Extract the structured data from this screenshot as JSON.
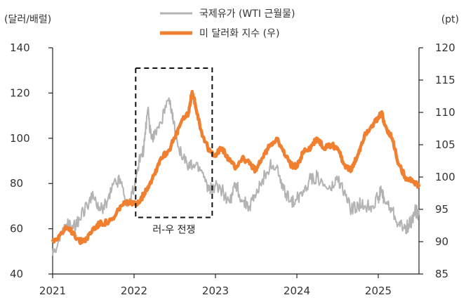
{
  "chart_data": {
    "type": "line",
    "title": "",
    "left_unit": "(달러/배럴)",
    "right_unit": "(pt)",
    "x_ticks": [
      "2021",
      "2022",
      "2023",
      "2024",
      "2025"
    ],
    "x_range": [
      2021.0,
      2025.5
    ],
    "left_axis": {
      "ylim": [
        40,
        140
      ],
      "ticks": [
        "40",
        "60",
        "80",
        "100",
        "120",
        "140"
      ]
    },
    "right_axis": {
      "ylim": [
        85,
        120
      ],
      "ticks": [
        "85",
        "90",
        "95",
        "100",
        "105",
        "110",
        "115",
        "120"
      ]
    },
    "series": [
      {
        "name": "국제유가 (WTI 근월물)",
        "axis": "left",
        "color": "#b3b3b3",
        "x": [
          2021.0,
          2021.08,
          2021.17,
          2021.25,
          2021.33,
          2021.42,
          2021.5,
          2021.58,
          2021.67,
          2021.75,
          2021.83,
          2021.92,
          2022.0,
          2022.06,
          2022.12,
          2022.17,
          2022.21,
          2022.25,
          2022.33,
          2022.42,
          2022.46,
          2022.5,
          2022.58,
          2022.67,
          2022.75,
          2022.83,
          2022.92,
          2023.0,
          2023.08,
          2023.17,
          2023.25,
          2023.33,
          2023.42,
          2023.5,
          2023.58,
          2023.67,
          2023.75,
          2023.83,
          2023.92,
          2024.0,
          2024.08,
          2024.17,
          2024.25,
          2024.33,
          2024.42,
          2024.5,
          2024.58,
          2024.67,
          2024.75,
          2024.83,
          2024.92,
          2025.0,
          2025.04,
          2025.08,
          2025.17,
          2025.25,
          2025.33,
          2025.38,
          2025.42,
          2025.46,
          2025.5
        ],
        "values": [
          48,
          55,
          62,
          60,
          64,
          71,
          74,
          68,
          72,
          80,
          82,
          70,
          78,
          90,
          95,
          113,
          100,
          102,
          107,
          117,
          112,
          104,
          93,
          87,
          88,
          86,
          77,
          79,
          77,
          72,
          80,
          72,
          70,
          75,
          82,
          88,
          87,
          77,
          72,
          73,
          77,
          82,
          83,
          79,
          77,
          82,
          76,
          68,
          71,
          70,
          70,
          74,
          77,
          72,
          68,
          62,
          60,
          62,
          64,
          68,
          66
        ]
      },
      {
        "name": "미 달러화 지수 (우)",
        "axis": "right",
        "color": "#f07f2f",
        "x": [
          2021.0,
          2021.08,
          2021.17,
          2021.25,
          2021.33,
          2021.42,
          2021.5,
          2021.58,
          2021.67,
          2021.75,
          2021.83,
          2021.92,
          2022.0,
          2022.08,
          2022.17,
          2022.25,
          2022.33,
          2022.42,
          2022.5,
          2022.58,
          2022.67,
          2022.71,
          2022.75,
          2022.83,
          2022.92,
          2023.0,
          2023.08,
          2023.17,
          2023.25,
          2023.33,
          2023.42,
          2023.5,
          2023.58,
          2023.67,
          2023.75,
          2023.83,
          2023.92,
          2024.0,
          2024.08,
          2024.17,
          2024.25,
          2024.33,
          2024.42,
          2024.5,
          2024.58,
          2024.67,
          2024.75,
          2024.83,
          2024.92,
          2025.0,
          2025.04,
          2025.08,
          2025.17,
          2025.25,
          2025.33,
          2025.42,
          2025.5
        ],
        "values": [
          90,
          91,
          92,
          91.5,
          90,
          90.5,
          92,
          92.8,
          93,
          93.5,
          95.5,
          96,
          95.8,
          96.5,
          98.5,
          100.5,
          103,
          104,
          106,
          108.5,
          110,
          113,
          111.5,
          107,
          104,
          103.5,
          104.5,
          102.5,
          101.5,
          103,
          102,
          101,
          103,
          105,
          106,
          104,
          102,
          101.5,
          104,
          104.5,
          106,
          104.5,
          105,
          104.5,
          102,
          101,
          103.5,
          106.5,
          108,
          109,
          110,
          108,
          106,
          102,
          100,
          99.5,
          98.5
        ]
      }
    ],
    "annotation": {
      "label": "러-우 전쟁",
      "x_range": [
        2022.02,
        2022.96
      ],
      "left_y_range": [
        65,
        131
      ]
    }
  }
}
